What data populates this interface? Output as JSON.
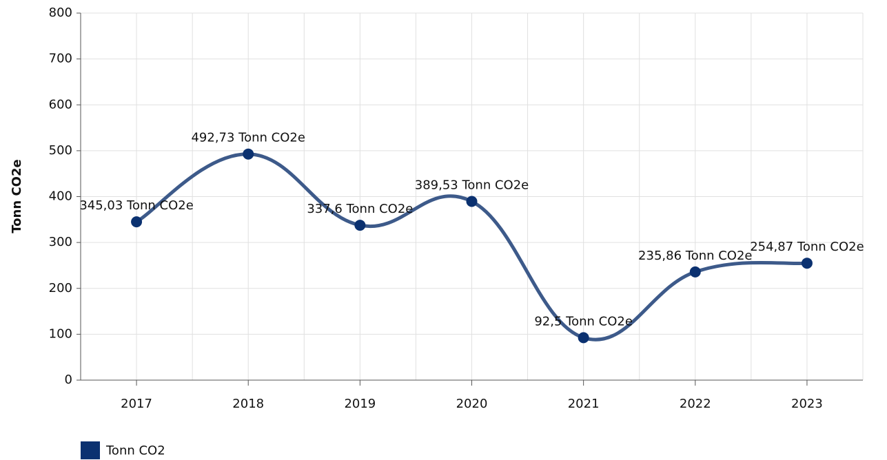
{
  "chart_data": {
    "type": "line",
    "y_label": "Tonn CO2e",
    "categories": [
      "2017",
      "2018",
      "2019",
      "2020",
      "2021",
      "2022",
      "2023"
    ],
    "series": [
      {
        "name": "Tonn CO2",
        "color": "#0b3170",
        "line_color": "#3d5a8a",
        "values": [
          345.03,
          492.73,
          337.6,
          389.53,
          92.5,
          235.86,
          254.87
        ],
        "value_labels": [
          "345,03 Tonn CO2e",
          "492,73 Tonn CO2e",
          "337,6 Tonn CO2e",
          "389,53 Tonn CO2e",
          "92,5 Tonn CO2e",
          "235,86 Tonn CO2e",
          "254,87 Tonn CO2e"
        ]
      }
    ],
    "ylim": [
      0,
      800
    ],
    "yticks": [
      0,
      100,
      200,
      300,
      400,
      500,
      600,
      700,
      800
    ],
    "grid": true,
    "legend": "bottom-left"
  }
}
